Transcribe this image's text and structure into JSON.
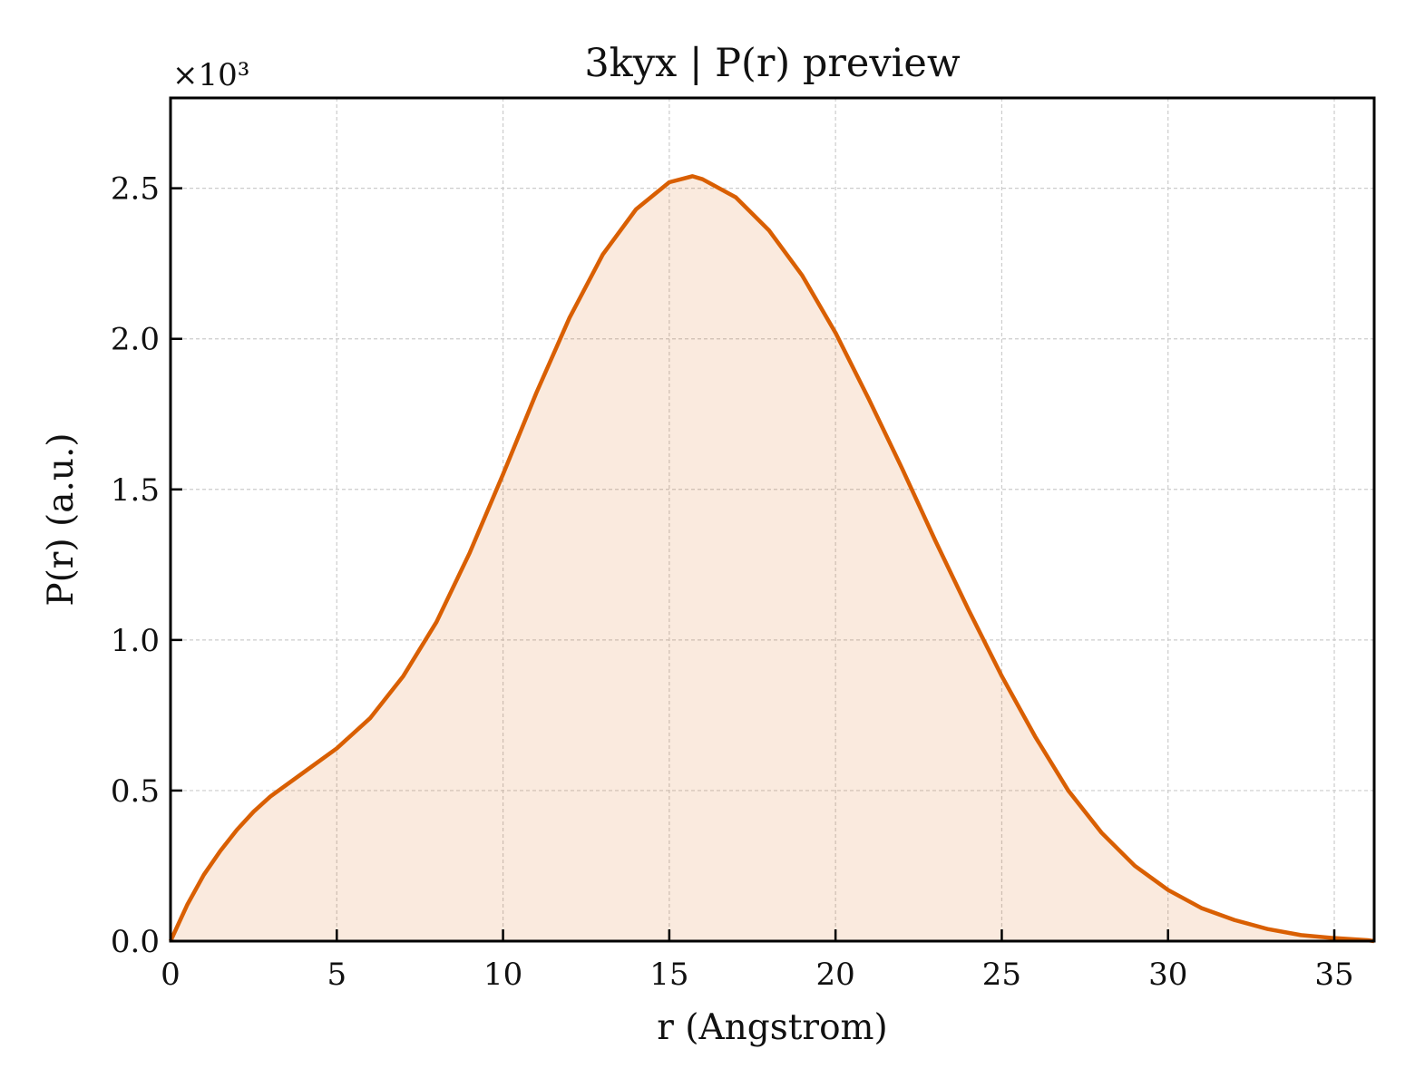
{
  "chart_data": {
    "type": "area",
    "title": "3kyx | P(r) preview",
    "xlabel": "r (Angstrom)",
    "ylabel": "P(r) (a.u.)",
    "y_offset_label": "×10³",
    "y_scale": 1000,
    "xlim": [
      0,
      36.2
    ],
    "ylim": [
      0,
      2.8
    ],
    "xticks": [
      0,
      5,
      10,
      15,
      20,
      25,
      30,
      35
    ],
    "xtick_labels": [
      "0",
      "5",
      "10",
      "15",
      "20",
      "25",
      "30",
      "35"
    ],
    "yticks": [
      0,
      0.5,
      1.0,
      1.5,
      2.0,
      2.5
    ],
    "ytick_labels": [
      "0.0",
      "0.5",
      "1.0",
      "1.5",
      "2.0",
      "2.5"
    ],
    "grid": true,
    "colors": {
      "line": "#d95f02",
      "fill": "#d95f02",
      "grid": "#cccccc"
    },
    "series": [
      {
        "x": [
          0,
          0.5,
          1,
          1.5,
          2,
          2.5,
          3,
          4,
          5,
          6,
          7,
          8,
          9,
          10,
          11,
          12,
          13,
          14,
          15,
          15.7,
          16,
          17,
          18,
          19,
          20,
          21,
          22,
          23,
          24,
          25,
          26,
          27,
          28,
          29,
          30,
          31,
          32,
          33,
          34,
          35,
          36,
          36.2
        ],
        "y": [
          0.0,
          0.12,
          0.22,
          0.3,
          0.37,
          0.43,
          0.48,
          0.56,
          0.64,
          0.74,
          0.88,
          1.06,
          1.29,
          1.55,
          1.82,
          2.07,
          2.28,
          2.43,
          2.52,
          2.54,
          2.53,
          2.47,
          2.36,
          2.21,
          2.02,
          1.8,
          1.57,
          1.33,
          1.1,
          0.88,
          0.68,
          0.5,
          0.36,
          0.25,
          0.17,
          0.11,
          0.07,
          0.04,
          0.02,
          0.01,
          0.003,
          0.0
        ]
      }
    ]
  }
}
